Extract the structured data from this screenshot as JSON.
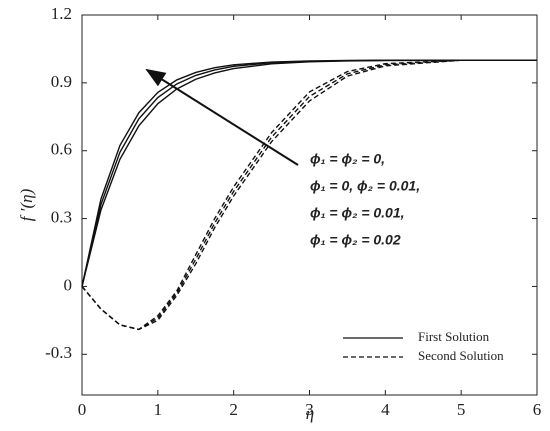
{
  "chart_data": {
    "type": "line",
    "x_label": "η",
    "y_label": "f ′(η)",
    "x": [
      0,
      0.25,
      0.5,
      0.75,
      1,
      1.25,
      1.5,
      1.75,
      2,
      2.5,
      3,
      3.5,
      4,
      5,
      6
    ],
    "series": [
      {
        "name": "First Solution",
        "color": "#111111",
        "dashed": false,
        "curves": [
          [
            0,
            0.338,
            0.562,
            0.71,
            0.808,
            0.873,
            0.916,
            0.944,
            0.963,
            0.984,
            0.993,
            0.997,
            0.999,
            1,
            1
          ],
          [
            0,
            0.362,
            0.593,
            0.741,
            0.835,
            0.895,
            0.933,
            0.957,
            0.973,
            0.989,
            0.995,
            0.998,
            0.999,
            1,
            1
          ],
          [
            0,
            0.386,
            0.623,
            0.768,
            0.858,
            0.913,
            0.946,
            0.967,
            0.98,
            0.992,
            0.997,
            0.999,
            1,
            1,
            1
          ]
        ]
      },
      {
        "name": "Second Solution",
        "color": "#111111",
        "dashed": true,
        "curves": [
          [
            0,
            -0.1,
            -0.17,
            -0.19,
            -0.15,
            -0.04,
            0.1,
            0.26,
            0.4,
            0.64,
            0.82,
            0.93,
            0.975,
            1,
            1
          ],
          [
            0,
            -0.1,
            -0.17,
            -0.19,
            -0.14,
            -0.03,
            0.12,
            0.28,
            0.42,
            0.66,
            0.84,
            0.94,
            0.98,
            1,
            1
          ],
          [
            0,
            -0.1,
            -0.17,
            -0.19,
            -0.13,
            -0.02,
            0.14,
            0.3,
            0.44,
            0.68,
            0.86,
            0.95,
            0.985,
            1,
            1
          ]
        ]
      }
    ],
    "annotations": [
      "ϕ₁ = ϕ₂ = 0,",
      "ϕ₁ = 0, ϕ₂ = 0.01,",
      "ϕ₁ = ϕ₂ = 0.01,",
      "ϕ₁ = ϕ₂ = 0.02"
    ],
    "xlim": [
      0,
      6
    ],
    "xticks": [
      0,
      1,
      2,
      3,
      4,
      5,
      6
    ],
    "ylim": [
      -0.48,
      1.2
    ],
    "yticks": [
      -0.3,
      0,
      0.3,
      0.6,
      0.9,
      1.2
    ],
    "legend_position": "lower right"
  }
}
